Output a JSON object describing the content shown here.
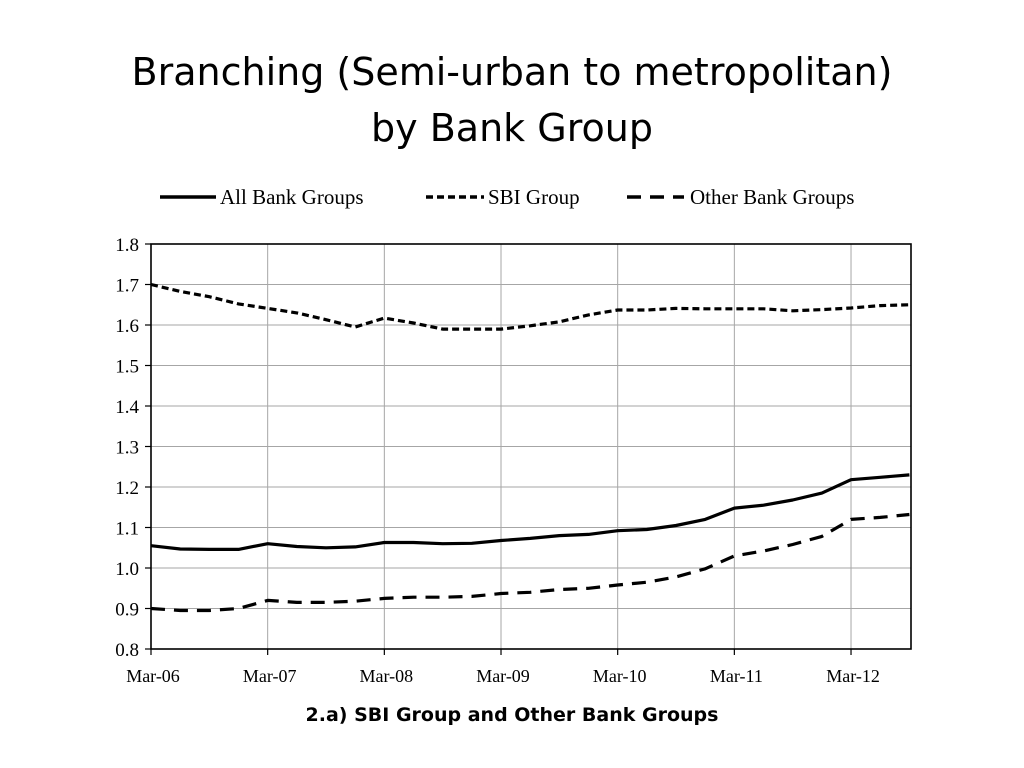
{
  "slide": {
    "title_line1": "Branching (Semi-urban to metropolitan)",
    "title_line2": "by Bank Group",
    "caption": "2.a) SBI Group and Other Bank Groups"
  },
  "chart_data": {
    "type": "line",
    "title": "",
    "xlabel": "",
    "ylabel": "",
    "ylim": [
      0.8,
      1.8
    ],
    "yticks": [
      "0.8",
      "0.9",
      "1.0",
      "1.1",
      "1.2",
      "1.3",
      "1.4",
      "1.5",
      "1.6",
      "1.7",
      "1.8"
    ],
    "xticks": [
      "Mar-06",
      "Mar-07",
      "Mar-08",
      "Mar-09",
      "Mar-10",
      "Mar-11",
      "Mar-12"
    ],
    "x": [
      "Mar-06",
      "Jun-06",
      "Sep-06",
      "Dec-06",
      "Mar-07",
      "Jun-07",
      "Sep-07",
      "Dec-07",
      "Mar-08",
      "Jun-08",
      "Sep-08",
      "Dec-08",
      "Mar-09",
      "Jun-09",
      "Sep-09",
      "Dec-09",
      "Mar-10",
      "Jun-10",
      "Sep-10",
      "Dec-10",
      "Mar-11",
      "Jun-11",
      "Sep-11",
      "Dec-11",
      "Mar-12",
      "Jun-12",
      "Sep-12"
    ],
    "grid": true,
    "legend_position": "top",
    "series": [
      {
        "name": "All Bank Groups",
        "style": "solid",
        "color": "#000000",
        "values": [
          1.055,
          1.047,
          1.046,
          1.046,
          1.06,
          1.053,
          1.05,
          1.052,
          1.063,
          1.063,
          1.06,
          1.061,
          1.068,
          1.073,
          1.08,
          1.083,
          1.092,
          1.095,
          1.105,
          1.12,
          1.148,
          1.155,
          1.168,
          1.185,
          1.218,
          1.224,
          1.23
        ]
      },
      {
        "name": "SBI Group",
        "style": "short-dash",
        "color": "#000000",
        "values": [
          1.7,
          1.683,
          1.67,
          1.652,
          1.641,
          1.63,
          1.613,
          1.595,
          1.617,
          1.605,
          1.59,
          1.59,
          1.59,
          1.598,
          1.608,
          1.625,
          1.637,
          1.637,
          1.641,
          1.64,
          1.64,
          1.64,
          1.635,
          1.638,
          1.642,
          1.648,
          1.65
        ]
      },
      {
        "name": "Other Bank Groups",
        "style": "long-dash",
        "color": "#000000",
        "values": [
          0.9,
          0.895,
          0.895,
          0.9,
          0.92,
          0.915,
          0.915,
          0.918,
          0.925,
          0.928,
          0.928,
          0.93,
          0.937,
          0.94,
          0.947,
          0.95,
          0.958,
          0.965,
          0.978,
          0.998,
          1.03,
          1.042,
          1.058,
          1.078,
          1.12,
          1.125,
          1.132
        ]
      }
    ]
  }
}
